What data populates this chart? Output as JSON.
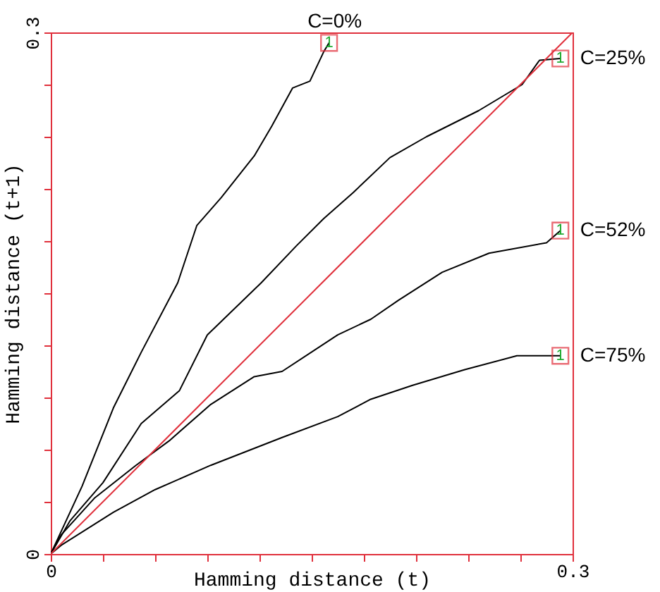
{
  "chart_data": {
    "type": "line",
    "xlabel": "Hamming distance (t)",
    "ylabel": "Hamming distance (t+1)",
    "xlim": [
      0,
      0.3
    ],
    "ylim": [
      0,
      0.3
    ],
    "xticks": [
      0,
      {
        "value": 0.03,
        "label": null
      },
      {
        "value": 0.06,
        "label": null
      },
      {
        "value": 0.09,
        "label": null
      },
      {
        "value": 0.12,
        "label": null
      },
      {
        "value": 0.15,
        "label": null
      },
      {
        "value": 0.18,
        "label": null
      },
      {
        "value": 0.21,
        "label": null
      },
      {
        "value": 0.24,
        "label": null
      },
      {
        "value": 0.27,
        "label": null
      },
      0.3
    ],
    "yticks": [
      0,
      {
        "value": 0.03,
        "label": null
      },
      {
        "value": 0.06,
        "label": null
      },
      {
        "value": 0.09,
        "label": null
      },
      {
        "value": 0.12,
        "label": null
      },
      {
        "value": 0.15,
        "label": null
      },
      {
        "value": 0.18,
        "label": null
      },
      {
        "value": 0.21,
        "label": null
      },
      {
        "value": 0.24,
        "label": null
      },
      {
        "value": 0.27,
        "label": null
      },
      0.3
    ],
    "grid": false,
    "marker": "none",
    "line_style": "solid",
    "series": [
      {
        "name": "C=0%",
        "color": "#000000",
        "x": [
          0,
          0.018,
          0.036,
          0.052,
          0.073,
          0.084,
          0.098,
          0.117,
          0.127,
          0.139,
          0.149,
          0.157,
          0.16
        ],
        "values": [
          0,
          0.039,
          0.084,
          0.116,
          0.156,
          0.189,
          0.205,
          0.229,
          0.246,
          0.268,
          0.272,
          0.289,
          0.294
        ]
      },
      {
        "name": "C=25%",
        "color": "#000000",
        "x": [
          0,
          0.011,
          0.03,
          0.052,
          0.074,
          0.09,
          0.121,
          0.141,
          0.157,
          0.174,
          0.195,
          0.216,
          0.246,
          0.271,
          0.281,
          0.293
        ],
        "values": [
          0,
          0.019,
          0.041,
          0.075,
          0.094,
          0.126,
          0.156,
          0.177,
          0.193,
          0.208,
          0.228,
          0.24,
          0.255,
          0.27,
          0.284,
          0.285
        ]
      },
      {
        "name": "C=52%",
        "color": "#000000",
        "x": [
          0,
          0.006,
          0.025,
          0.049,
          0.068,
          0.092,
          0.117,
          0.133,
          0.165,
          0.184,
          0.2,
          0.225,
          0.252,
          0.285,
          0.293
        ],
        "values": [
          0,
          0.011,
          0.032,
          0.051,
          0.065,
          0.086,
          0.102,
          0.105,
          0.126,
          0.135,
          0.146,
          0.162,
          0.173,
          0.179,
          0.186
        ]
      },
      {
        "name": "C=75%",
        "color": "#000000",
        "x": [
          0,
          0.006,
          0.036,
          0.06,
          0.092,
          0.133,
          0.165,
          0.184,
          0.208,
          0.238,
          0.268,
          0.293
        ],
        "values": [
          0,
          0.005,
          0.024,
          0.037,
          0.051,
          0.067,
          0.079,
          0.089,
          0.097,
          0.106,
          0.114,
          0.114
        ]
      },
      {
        "color": "#e0303c",
        "x": [
          0,
          0.3
        ],
        "values": [
          0,
          0.3
        ]
      }
    ],
    "annotations": [
      "1",
      "1",
      "1",
      "1"
    ]
  }
}
